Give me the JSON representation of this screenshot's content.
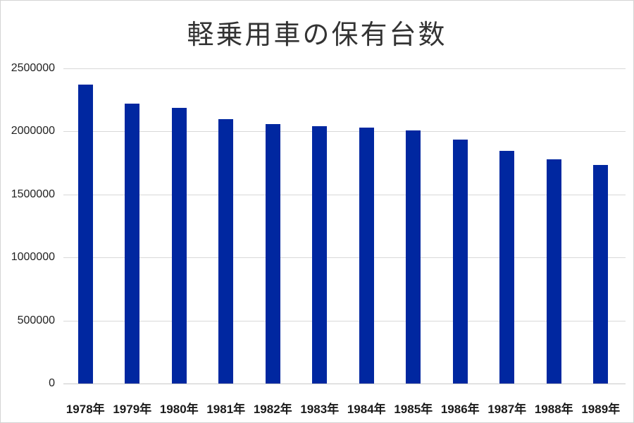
{
  "chart_data": {
    "type": "bar",
    "title": "軽乗用車の保有台数",
    "xlabel": "",
    "ylabel": "",
    "categories": [
      "1978年",
      "1979年",
      "1980年",
      "1981年",
      "1982年",
      "1983年",
      "1984年",
      "1985年",
      "1986年",
      "1987年",
      "1988年",
      "1989年"
    ],
    "values": [
      2370000,
      2220000,
      2187000,
      2097000,
      2058000,
      2041000,
      2030000,
      2008000,
      1935000,
      1846000,
      1779000,
      1734000
    ],
    "ylim": [
      0,
      2500000
    ],
    "yticks": [
      "0",
      "500000",
      "1000000",
      "1500000",
      "2000000",
      "2500000"
    ],
    "grid": true,
    "legend": null,
    "bar_color": "#0027a0"
  }
}
